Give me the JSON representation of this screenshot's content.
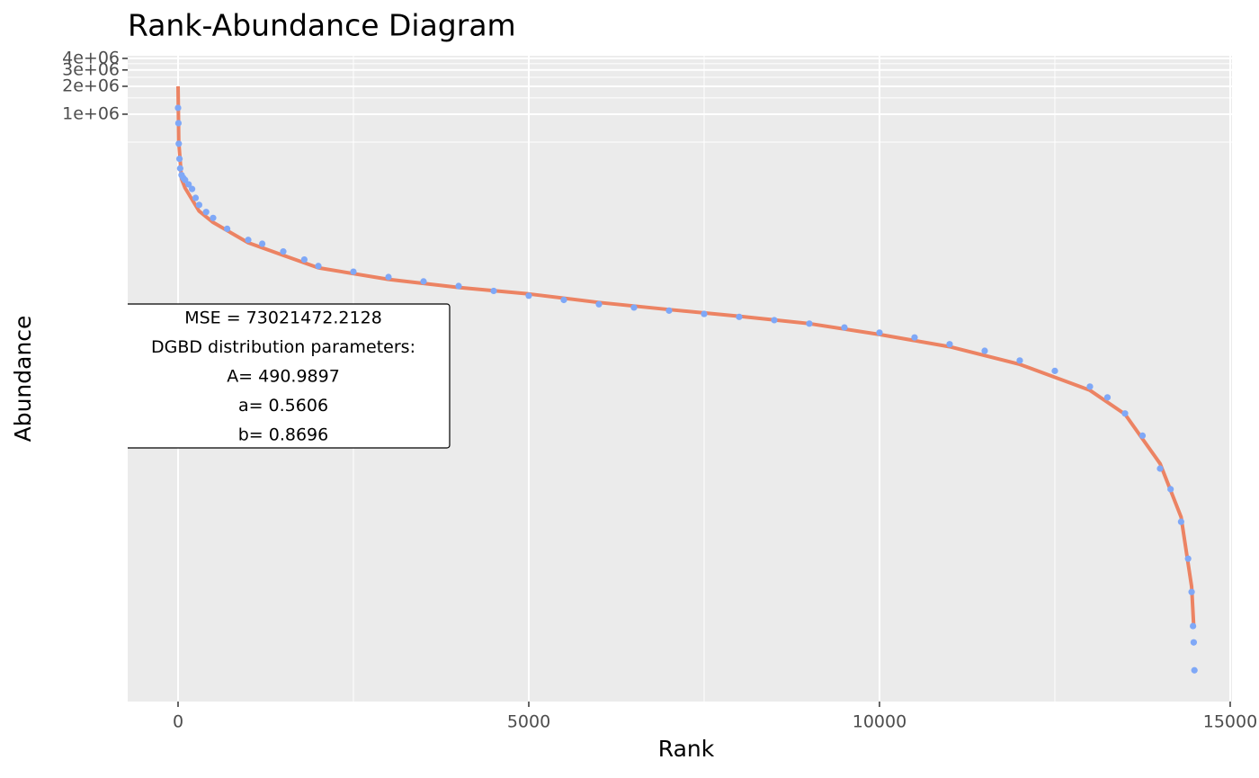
{
  "chart_data": {
    "type": "scatter",
    "title": "Rank-Abundance Diagram",
    "x_label": "Rank",
    "y_label": "Abundance",
    "log_y": true,
    "grid": true,
    "xlim": [
      -718,
      15026
    ],
    "xticks": [
      0,
      5000,
      10000,
      15000
    ],
    "xminor": [
      2500,
      7500,
      12500
    ],
    "ylim": [
      0.46,
      4270000
    ],
    "yticks": [
      {
        "value": 1000000,
        "label": "1e+06"
      },
      {
        "value": 2000000,
        "label": "2e+06"
      },
      {
        "value": 3000000,
        "label": "3e+06"
      },
      {
        "value": 4000000,
        "label": "4e+06"
      }
    ],
    "yminor": [
      500000,
      1500000,
      2500000,
      3500000
    ],
    "series": [
      {
        "type": "line",
        "color": "#ec8363",
        "x": [
          0,
          10,
          50,
          100,
          200,
          300,
          500,
          1000,
          1500,
          2000,
          3000,
          4000,
          5000,
          6000,
          7000,
          8000,
          9000,
          10000,
          11000,
          12000,
          13000,
          13500,
          14000,
          14300,
          14450,
          14480
        ],
        "values": [
          2000000,
          500000,
          200000,
          160000,
          120000,
          90000,
          68000,
          41000,
          30000,
          22000,
          16500,
          13500,
          11500,
          9300,
          7800,
          6600,
          5500,
          4200,
          3100,
          2000,
          1050,
          580,
          170,
          45,
          8,
          3
        ]
      },
      {
        "type": "scatter",
        "color": "#7fa8f7",
        "x": [
          0,
          5,
          10,
          20,
          30,
          50,
          75,
          100,
          150,
          200,
          250,
          300,
          400,
          500,
          700,
          1000,
          1200,
          1500,
          1800,
          2000,
          2500,
          3000,
          3500,
          4000,
          4500,
          5000,
          5500,
          6000,
          6500,
          7000,
          7500,
          8000,
          8500,
          9000,
          9500,
          10000,
          10500,
          11000,
          11500,
          12000,
          12500,
          13000,
          13250,
          13500,
          13750,
          14000,
          14150,
          14300,
          14400,
          14450,
          14470,
          14480,
          14490
        ],
        "values": [
          1170000,
          800000,
          480000,
          330000,
          260000,
          220000,
          205000,
          195000,
          175000,
          156000,
          125000,
          105000,
          88000,
          76000,
          58000,
          44000,
          40000,
          33000,
          27000,
          23000,
          20000,
          17500,
          15700,
          14000,
          12400,
          11000,
          9900,
          8900,
          8200,
          7600,
          7000,
          6500,
          6000,
          5500,
          5000,
          4400,
          3900,
          3300,
          2800,
          2200,
          1700,
          1150,
          880,
          590,
          340,
          150,
          90,
          40,
          16,
          7,
          3,
          2,
          1
        ]
      }
    ],
    "annotation": [
      "MSE = 73021472.2128",
      "DGBD distribution parameters:",
      "A= 490.9897",
      "a= 0.5606",
      "b= 0.8696"
    ]
  }
}
